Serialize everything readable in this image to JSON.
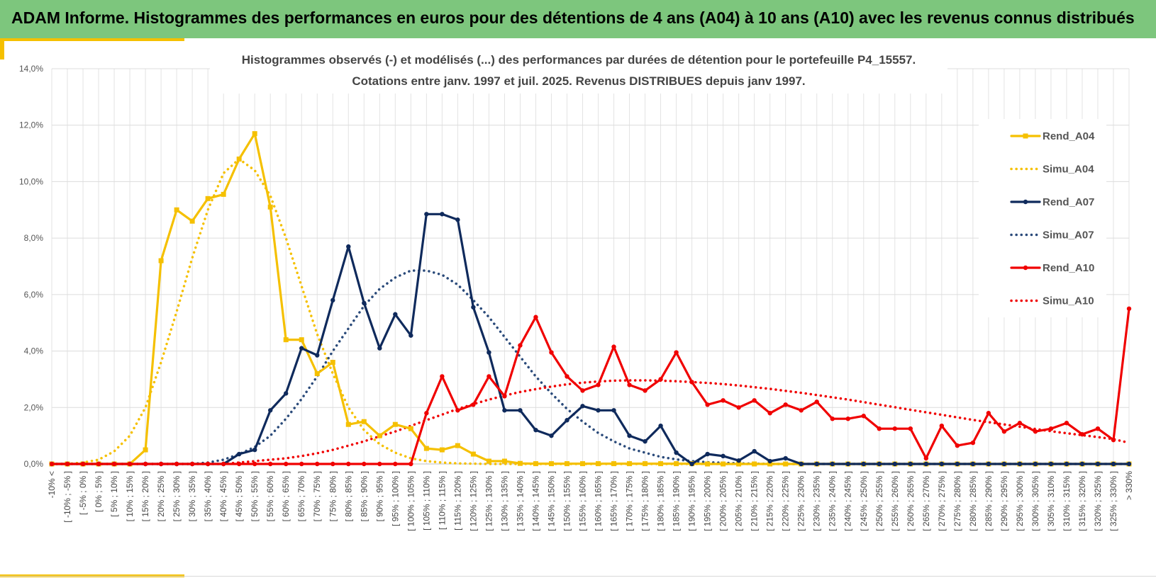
{
  "header": {
    "title": "ADAM Informe. Histogrammes des performances en euros pour des détentions de 4 ans (A04) à 10 ans (A10) avec les revenus connus distribués"
  },
  "colors": {
    "header_bg": "#7dc67d",
    "accent": "#f5c000",
    "A04": "#f5c000",
    "A07": "#0f2a5c",
    "A07_simu": "#2a4a7a",
    "A10": "#f00000"
  },
  "chart_data": {
    "type": "line",
    "title_line1": "Histogrammes observés (-) et modélisés (...) des performances par durées de détention pour le portefeuille P4_15557.",
    "title_line2": "Cotations entre janv. 1997 et juil. 2025. Revenus DISTRIBUES depuis janv 1997.",
    "xlabel": "",
    "ylabel": "",
    "ylim": [
      0,
      14
    ],
    "yticks": [
      "0,0%",
      "2,0%",
      "4,0%",
      "6,0%",
      "8,0%",
      "10,0%",
      "12,0%",
      "14,0%"
    ],
    "grid": true,
    "legend_position": "right",
    "categories": [
      "-10% <",
      "[ -10% ; -5% ]",
      "[ -5% ; 0% ]",
      "[ 0% ; 5% ]",
      "[ 5% ; 10% ]",
      "[ 10% ; 15% ]",
      "[ 15% ; 20% ]",
      "[ 20% ; 25% ]",
      "[ 25% ; 30% ]",
      "[ 30% ; 35% ]",
      "[ 35% ; 40% ]",
      "[ 40% ; 45% ]",
      "[ 45% ; 50% ]",
      "[ 50% ; 55% ]",
      "[ 55% ; 60% ]",
      "[ 60% ; 65% ]",
      "[ 65% ; 70% ]",
      "[ 70% ; 75% ]",
      "[ 75% ; 80% ]",
      "[ 80% ; 85% ]",
      "[ 85% ; 90% ]",
      "[ 90% ; 95% ]",
      "[ 95% ; 100% ]",
      "[ 100% ; 105% ]",
      "[ 105% ; 110% ]",
      "[ 110% ; 115% ]",
      "[ 115% ; 120% ]",
      "[ 120% ; 125% ]",
      "[ 125% ; 130% ]",
      "[ 130% ; 135% ]",
      "[ 135% ; 140% ]",
      "[ 140% ; 145% ]",
      "[ 145% ; 150% ]",
      "[ 150% ; 155% ]",
      "[ 155% ; 160% ]",
      "[ 160% ; 165% ]",
      "[ 165% ; 170% ]",
      "[ 170% ; 175% ]",
      "[ 175% ; 180% ]",
      "[ 180% ; 185% ]",
      "[ 185% ; 190% ]",
      "[ 190% ; 195% ]",
      "[ 195% ; 200% ]",
      "[ 200% ; 205% ]",
      "[ 205% ; 210% ]",
      "[ 210% ; 215% ]",
      "[ 215% ; 220% ]",
      "[ 220% ; 225% ]",
      "[ 225% ; 230% ]",
      "[ 230% ; 235% ]",
      "[ 235% ; 240% ]",
      "[ 240% ; 245% ]",
      "[ 245% ; 250% ]",
      "[ 250% ; 255% ]",
      "[ 255% ; 260% ]",
      "[ 260% ; 265% ]",
      "[ 265% ; 270% ]",
      "[ 270% ; 275% ]",
      "[ 275% ; 280% ]",
      "[ 280% ; 285% ]",
      "[ 285% ; 290% ]",
      "[ 290% ; 295% ]",
      "[ 295% ; 300% ]",
      "[ 300% ; 305% ]",
      "[ 305% ; 310% ]",
      "[ 310% ; 315% ]",
      "[ 315% ; 320% ]",
      "[ 320% ; 325% ]",
      "[ 325% ; 330% ]",
      "> 330%"
    ],
    "series": [
      {
        "name": "Rend_A04",
        "style": "solid",
        "color": "#f5c000",
        "values": [
          0,
          0,
          0,
          0,
          0,
          0,
          0.5,
          7.2,
          9.0,
          8.6,
          9.4,
          9.55,
          10.8,
          11.7,
          9.1,
          4.4,
          4.4,
          3.2,
          3.6,
          1.4,
          1.5,
          1.0,
          1.4,
          1.25,
          0.55,
          0.5,
          0.65,
          0.35,
          0.1,
          0.1,
          0.02,
          0.01,
          0.01,
          0.01,
          0.01,
          0.01,
          0.01,
          0.01,
          0.01,
          0.01,
          0.01,
          0.01,
          0,
          0,
          0,
          0,
          0,
          0,
          0,
          0,
          0,
          0,
          0,
          0,
          0,
          0,
          0,
          0,
          0,
          0,
          0,
          0,
          0,
          0,
          0,
          0,
          0,
          0,
          0,
          0
        ]
      },
      {
        "name": "Simu_A04",
        "style": "dotted",
        "color": "#f5c000",
        "values": [
          0,
          0,
          0.05,
          0.15,
          0.45,
          1.0,
          2.0,
          3.6,
          5.4,
          7.3,
          9.0,
          10.3,
          10.8,
          10.4,
          9.5,
          8.0,
          6.3,
          4.6,
          3.2,
          2.0,
          1.2,
          0.7,
          0.4,
          0.2,
          0.1,
          0.05,
          0.02,
          0.01,
          0,
          0,
          0,
          0,
          0,
          0,
          0,
          0,
          0,
          0,
          0,
          0,
          0,
          0,
          0,
          0,
          0,
          0,
          0,
          0,
          0,
          0,
          0,
          0,
          0,
          0,
          0,
          0,
          0,
          0,
          0,
          0,
          0,
          0,
          0,
          0,
          0,
          0,
          0,
          0,
          0,
          0
        ]
      },
      {
        "name": "Rend_A07",
        "style": "solid",
        "color": "#0f2a5c",
        "values": [
          0,
          0,
          0,
          0,
          0,
          0,
          0,
          0,
          0,
          0,
          0,
          0,
          0.35,
          0.5,
          1.9,
          2.5,
          4.1,
          3.85,
          5.8,
          7.7,
          5.7,
          4.1,
          5.3,
          4.55,
          8.85,
          8.85,
          8.65,
          5.55,
          3.95,
          1.9,
          1.9,
          1.2,
          1.0,
          1.55,
          2.05,
          1.9,
          1.9,
          1.0,
          0.8,
          1.35,
          0.4,
          0.0,
          0.35,
          0.28,
          0.12,
          0.45,
          0.1,
          0.2,
          0,
          0,
          0,
          0,
          0,
          0,
          0,
          0,
          0,
          0,
          0,
          0,
          0,
          0,
          0,
          0,
          0,
          0,
          0,
          0,
          0,
          0
        ]
      },
      {
        "name": "Simu_A07",
        "style": "dotted",
        "color": "#2a4a7a",
        "values": [
          0,
          0,
          0,
          0,
          0,
          0,
          0,
          0,
          0,
          0,
          0.05,
          0.15,
          0.35,
          0.6,
          1.0,
          1.6,
          2.3,
          3.1,
          4.0,
          4.8,
          5.6,
          6.2,
          6.6,
          6.85,
          6.85,
          6.7,
          6.35,
          5.8,
          5.2,
          4.5,
          3.8,
          3.1,
          2.5,
          1.95,
          1.5,
          1.1,
          0.8,
          0.55,
          0.4,
          0.25,
          0.16,
          0.1,
          0.06,
          0.04,
          0.02,
          0.01,
          0,
          0,
          0,
          0,
          0,
          0,
          0,
          0,
          0,
          0,
          0,
          0,
          0,
          0,
          0,
          0,
          0,
          0,
          0,
          0,
          0,
          0,
          0,
          0
        ]
      },
      {
        "name": "Rend_A10",
        "style": "solid",
        "color": "#f00000",
        "values": [
          0,
          0,
          0,
          0,
          0,
          0,
          0,
          0,
          0,
          0,
          0,
          0,
          0,
          0,
          0,
          0,
          0,
          0,
          0,
          0,
          0,
          0,
          0,
          0,
          1.8,
          3.1,
          1.9,
          2.1,
          3.1,
          2.4,
          4.2,
          5.2,
          3.95,
          3.1,
          2.6,
          2.8,
          4.15,
          2.8,
          2.6,
          3.0,
          3.95,
          2.9,
          2.1,
          2.25,
          2.0,
          2.25,
          1.8,
          2.1,
          1.9,
          2.2,
          1.6,
          1.6,
          1.7,
          1.25,
          1.25,
          1.25,
          0.2,
          1.35,
          0.65,
          0.75,
          1.8,
          1.15,
          1.45,
          1.15,
          1.25,
          1.45,
          1.05,
          1.25,
          0.85,
          5.5
        ]
      },
      {
        "name": "Simu_A10",
        "style": "dotted",
        "color": "#f00000",
        "values": [
          0,
          0,
          0,
          0,
          0,
          0,
          0,
          0,
          0,
          0,
          0,
          0,
          0.05,
          0.1,
          0.15,
          0.2,
          0.28,
          0.38,
          0.5,
          0.65,
          0.8,
          0.98,
          1.15,
          1.35,
          1.55,
          1.75,
          1.95,
          2.12,
          2.28,
          2.42,
          2.55,
          2.65,
          2.74,
          2.82,
          2.88,
          2.92,
          2.95,
          2.96,
          2.96,
          2.95,
          2.93,
          2.9,
          2.87,
          2.83,
          2.78,
          2.72,
          2.66,
          2.59,
          2.52,
          2.44,
          2.36,
          2.28,
          2.19,
          2.1,
          2.01,
          1.92,
          1.83,
          1.74,
          1.65,
          1.56,
          1.48,
          1.4,
          1.32,
          1.24,
          1.16,
          1.09,
          1.02,
          0.95,
          0.88,
          0.75
        ]
      }
    ]
  }
}
